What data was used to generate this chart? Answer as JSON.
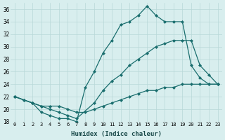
{
  "title": "",
  "xlabel": "Humidex (Indice chaleur)",
  "ylabel": "",
  "background_color": "#d8eeee",
  "grid_color": "#b8d8d8",
  "line_color": "#1a6e6e",
  "ylim": [
    18,
    37
  ],
  "xlim": [
    -0.5,
    23.5
  ],
  "yticks": [
    18,
    20,
    22,
    24,
    26,
    28,
    30,
    32,
    34,
    36
  ],
  "xticks": [
    0,
    1,
    2,
    3,
    4,
    5,
    6,
    7,
    8,
    9,
    10,
    11,
    12,
    13,
    14,
    15,
    16,
    17,
    18,
    19,
    20,
    21,
    22,
    23
  ],
  "series": [
    {
      "x": [
        0,
        1,
        2,
        3,
        4,
        5,
        6,
        7,
        8,
        9,
        10,
        11,
        12,
        13,
        14,
        15,
        16,
        17,
        18,
        19,
        20,
        21,
        22,
        23
      ],
      "y": [
        22,
        21.5,
        21,
        19.5,
        19,
        18.5,
        18.5,
        18,
        23.5,
        26,
        29,
        31,
        33.5,
        34,
        35,
        36.5,
        35,
        34,
        34,
        34,
        27,
        25,
        24,
        24
      ]
    },
    {
      "x": [
        0,
        2,
        3,
        4,
        5,
        6,
        7,
        9,
        10,
        11,
        12,
        13,
        14,
        15,
        16,
        17,
        18,
        19,
        20,
        21,
        22,
        23
      ],
      "y": [
        22,
        21,
        20.5,
        20,
        19.5,
        19,
        18.5,
        21,
        23,
        24.5,
        25.5,
        27,
        28,
        29,
        30,
        30.5,
        31,
        31,
        31,
        27,
        25.5,
        24
      ]
    },
    {
      "x": [
        0,
        1,
        2,
        3,
        4,
        5,
        6,
        7,
        8,
        9,
        10,
        11,
        12,
        13,
        14,
        15,
        16,
        17,
        18,
        19,
        20,
        21,
        22,
        23
      ],
      "y": [
        22,
        21.5,
        21,
        20.5,
        20.5,
        20.5,
        20,
        19.5,
        19.5,
        20,
        20.5,
        21,
        21.5,
        22,
        22.5,
        23,
        23,
        23.5,
        23.5,
        24,
        24,
        24,
        24,
        24
      ]
    }
  ]
}
